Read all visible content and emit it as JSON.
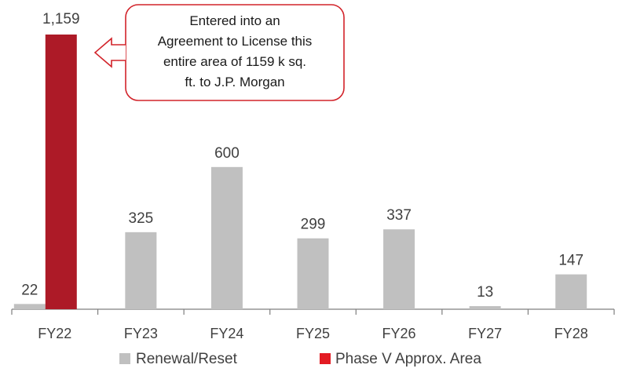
{
  "chart_data": {
    "type": "bar",
    "categories": [
      "FY22",
      "FY23",
      "FY24",
      "FY25",
      "FY26",
      "FY27",
      "FY28"
    ],
    "series": [
      {
        "name": "Renewal/Reset",
        "color": "#c0c0c0",
        "values": [
          22,
          325,
          600,
          299,
          337,
          13,
          147
        ]
      },
      {
        "name": "Phase V Approx. Area",
        "color": "#ad1a27",
        "values": [
          1159,
          null,
          null,
          null,
          null,
          null,
          null
        ]
      }
    ],
    "value_labels": [
      "22",
      "325",
      "600",
      "299",
      "337",
      "13",
      "147"
    ],
    "highlight_label": "1,159",
    "ylim": [
      0,
      1159
    ],
    "legend_position": "bottom"
  },
  "annotation": {
    "lines": [
      "Entered into an",
      "Agreement to License this",
      "entire area of 1159 k sq.",
      "ft. to J.P. Morgan"
    ],
    "border_color": "#d2232a"
  },
  "colors": {
    "renewal": "#c0c0c0",
    "phase_v": "#ad1a27",
    "axis": "#7f7f7f",
    "text": "#404040"
  }
}
